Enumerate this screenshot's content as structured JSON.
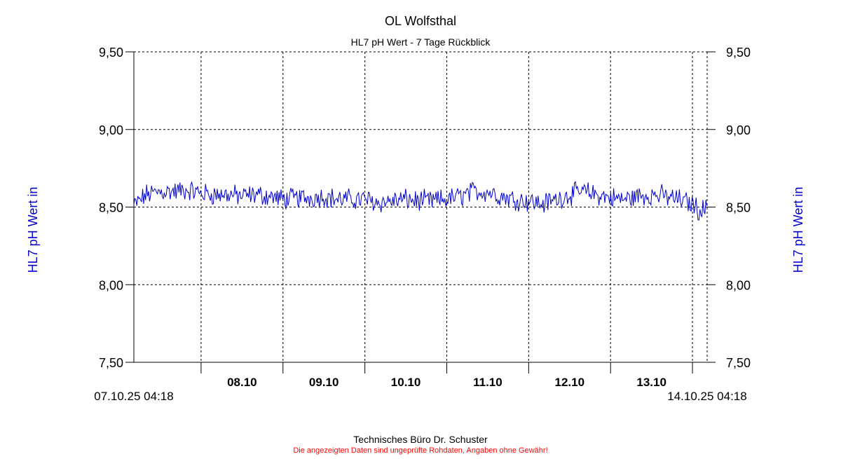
{
  "chart_data": {
    "type": "line",
    "title": "OL Wolfsthal",
    "subtitle": "HL7 pH Wert - 7 Tage Rückblick",
    "ylabel": "HL7 pH Wert in",
    "ylabel_right": "HL7 pH Wert in",
    "ylim": [
      7.5,
      9.5
    ],
    "yticks": [
      {
        "value": 7.5,
        "label": "7,50"
      },
      {
        "value": 8.0,
        "label": "8,00"
      },
      {
        "value": 8.5,
        "label": "8,50"
      },
      {
        "value": 9.0,
        "label": "9,00"
      },
      {
        "value": 9.5,
        "label": "9,50"
      }
    ],
    "xlim": [
      "2025-10-07T04:18",
      "2025-10-14T04:18"
    ],
    "xticks": [
      {
        "value": "2025-10-08T00:00",
        "label": "08.10"
      },
      {
        "value": "2025-10-09T00:00",
        "label": "09.10"
      },
      {
        "value": "2025-10-10T00:00",
        "label": "10.10"
      },
      {
        "value": "2025-10-11T00:00",
        "label": "11.10"
      },
      {
        "value": "2025-10-12T00:00",
        "label": "12.10"
      },
      {
        "value": "2025-10-13T00:00",
        "label": "13.10"
      },
      {
        "value": "2025-10-14T00:00",
        "label": ""
      }
    ],
    "x_start_label": "07.10.25 04:18",
    "x_end_label": "14.10.25 04:18",
    "grid": true,
    "line_color": "#0000cc",
    "series": [
      {
        "x": [
          "2025-10-07T04:18",
          "2025-10-07T08:00",
          "2025-10-07T12:00",
          "2025-10-07T16:00",
          "2025-10-07T20:00",
          "2025-10-08T00:00",
          "2025-10-08T04:00",
          "2025-10-08T08:00",
          "2025-10-08T12:00",
          "2025-10-08T16:00",
          "2025-10-08T20:00",
          "2025-10-09T00:00",
          "2025-10-09T04:00",
          "2025-10-09T08:00",
          "2025-10-09T12:00",
          "2025-10-09T16:00",
          "2025-10-09T20:00",
          "2025-10-10T00:00",
          "2025-10-10T04:00",
          "2025-10-10T08:00",
          "2025-10-10T12:00",
          "2025-10-10T16:00",
          "2025-10-10T20:00",
          "2025-10-11T00:00",
          "2025-10-11T04:00",
          "2025-10-11T08:00",
          "2025-10-11T12:00",
          "2025-10-11T16:00",
          "2025-10-11T20:00",
          "2025-10-12T00:00",
          "2025-10-12T04:00",
          "2025-10-12T08:00",
          "2025-10-12T12:00",
          "2025-10-12T16:00",
          "2025-10-12T20:00",
          "2025-10-13T00:00",
          "2025-10-13T04:00",
          "2025-10-13T08:00",
          "2025-10-13T12:00",
          "2025-10-13T16:00",
          "2025-10-13T20:00",
          "2025-10-14T00:00",
          "2025-10-14T02:00",
          "2025-10-14T04:18"
        ],
        "values": [
          8.51,
          8.58,
          8.6,
          8.6,
          8.61,
          8.59,
          8.58,
          8.58,
          8.57,
          8.58,
          8.57,
          8.55,
          8.56,
          8.56,
          8.57,
          8.55,
          8.55,
          8.55,
          8.53,
          8.54,
          8.55,
          8.54,
          8.54,
          8.55,
          8.57,
          8.6,
          8.6,
          8.57,
          8.55,
          8.54,
          8.52,
          8.55,
          8.58,
          8.6,
          8.58,
          8.56,
          8.55,
          8.57,
          8.58,
          8.57,
          8.55,
          8.52,
          8.48,
          8.49
        ]
      }
    ]
  },
  "footer": {
    "company": "Technisches Büro Dr. Schuster",
    "disclaimer": "Die angezeigten Daten sind ungeprüfte Rohdaten, Angaben ohne Gewähr!"
  }
}
